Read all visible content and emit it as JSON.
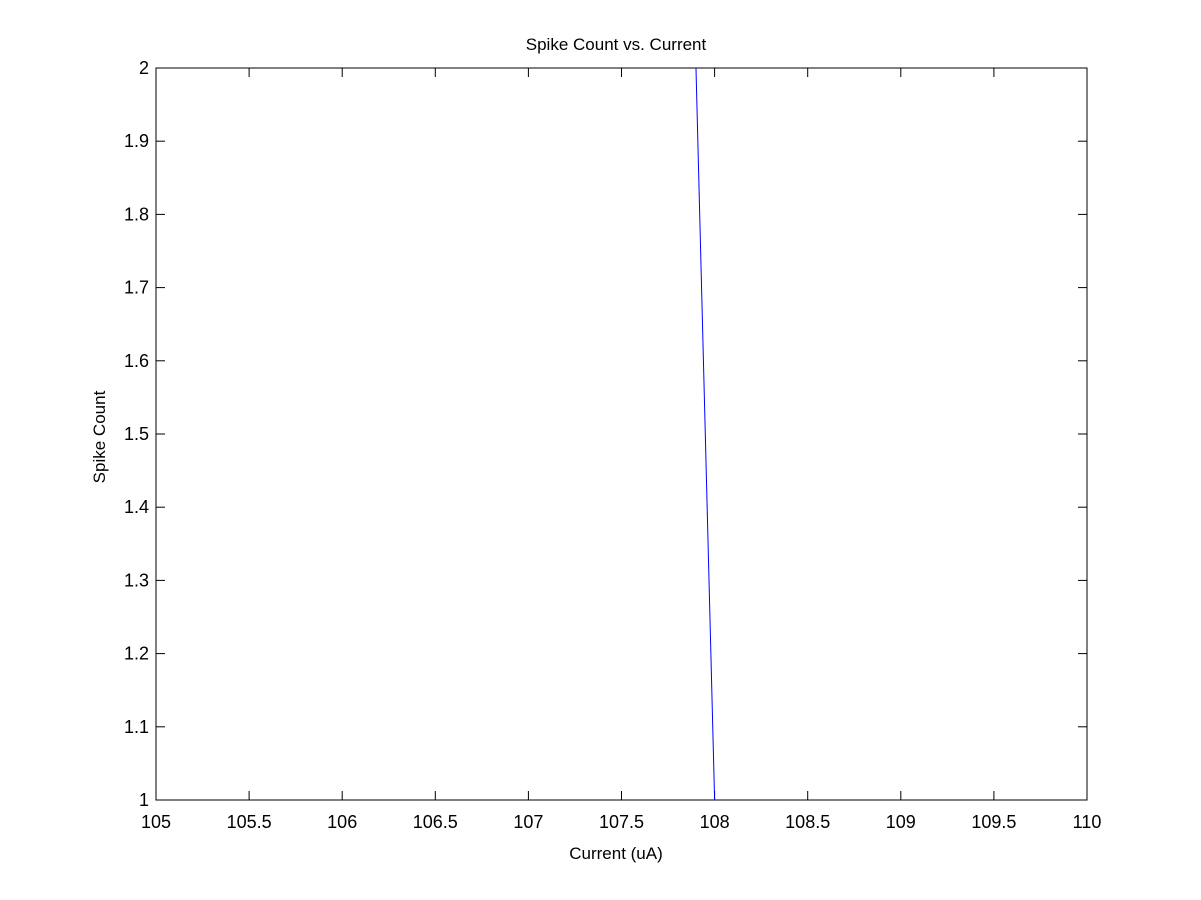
{
  "chart_data": {
    "type": "line",
    "title": "Spike Count vs. Current",
    "xlabel": "Current (uA)",
    "ylabel": "Spike Count",
    "xlim": [
      105,
      110
    ],
    "ylim": [
      1,
      2
    ],
    "xticks": [
      "105",
      "105.5",
      "106",
      "106.5",
      "107",
      "107.5",
      "108",
      "108.5",
      "109",
      "109.5",
      "110"
    ],
    "yticks": [
      "1",
      "1.1",
      "1.2",
      "1.3",
      "1.4",
      "1.5",
      "1.6",
      "1.7",
      "1.8",
      "1.9",
      "2"
    ],
    "grid": false,
    "legend": "none",
    "series": [
      {
        "color": "#0000ff",
        "x": [
          108.0,
          107.9
        ],
        "y": [
          1,
          2
        ]
      }
    ]
  }
}
